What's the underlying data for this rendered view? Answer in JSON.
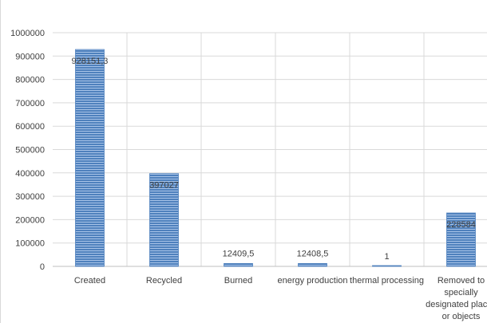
{
  "chart_data": {
    "type": "bar",
    "categories": [
      [
        "Created"
      ],
      [
        "Recycled"
      ],
      [
        "Burned"
      ],
      [
        "energy production"
      ],
      [
        "thermal processing"
      ],
      [
        "Removed to",
        "specially",
        "designated places",
        "or objects"
      ]
    ],
    "values": [
      928151.3,
      397027,
      12409.5,
      12408.5,
      1,
      228584
    ],
    "data_labels": [
      "928151,3",
      "397027",
      "12409,5",
      "12408,5",
      "1",
      "228584"
    ],
    "ylim": [
      0,
      1000000
    ],
    "yticks": [
      "0",
      "100000",
      "200000",
      "300000",
      "400000",
      "500000",
      "600000",
      "700000",
      "800000",
      "900000",
      "1000000"
    ],
    "grid": true,
    "colors": {
      "bar": "#4f81bd",
      "bar_stripe": "#a9c4e8",
      "grid": "#d9d9d9"
    }
  }
}
